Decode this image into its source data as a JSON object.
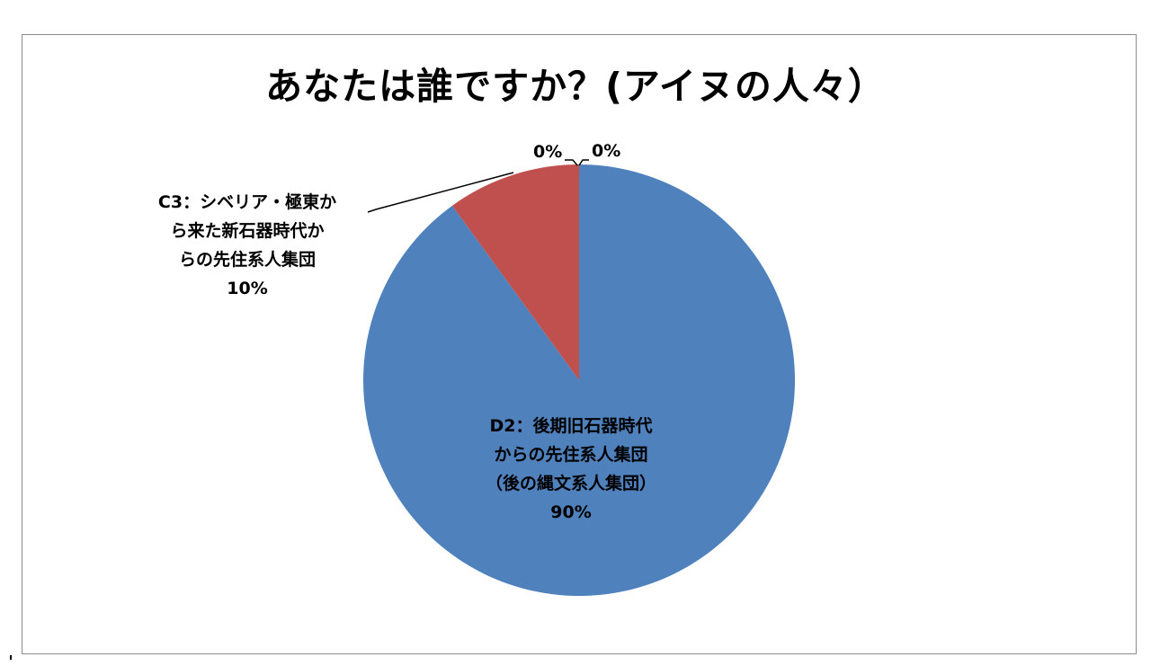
{
  "chart_data": {
    "type": "pie",
    "title": "あなたは誰ですか？(アイヌの人々）",
    "slices": [
      {
        "category_lines": [
          "D2：後期旧石器時代",
          "からの先住系人集団",
          "（後の縄文系人集団）"
        ],
        "value": 90,
        "value_label": "90%",
        "color": "#4f81bd"
      },
      {
        "category_lines": [
          "C3：シベリア・極東か",
          "ら来た新石器時代か",
          "らの先住系人集団"
        ],
        "value": 10,
        "value_label": "10%",
        "color": "#c0504d"
      },
      {
        "category_lines": [],
        "value": 0,
        "value_label": "0%",
        "color": "#9bbb59"
      },
      {
        "category_lines": [],
        "value": 0,
        "value_label": "0%",
        "color": "#8064a2"
      }
    ],
    "start_angle": "12 o'clock",
    "direction": "clockwise",
    "legend": "none"
  }
}
